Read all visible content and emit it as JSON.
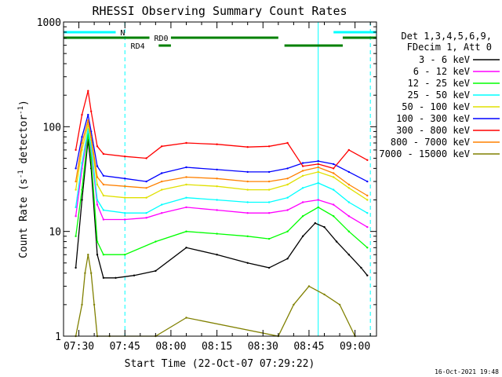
{
  "chart_data": {
    "type": "line",
    "title": "RHESSI Observing Summary Count Rates",
    "xlabel": "Start Time (22-Oct-07 07:29:22)",
    "ylabel_main": "Count Rate (s",
    "ylabel_sup": "-1",
    "ylabel_tail": " detector",
    "ylabel_end": ")",
    "y_scale": "log",
    "ylim": [
      1,
      1000
    ],
    "xlim": [
      "07:25",
      "09:07"
    ],
    "x_ticks": [
      "07:30",
      "07:45",
      "08:00",
      "08:15",
      "08:30",
      "08:45",
      "09:00"
    ],
    "y_ticks": [
      "1",
      "10",
      "100",
      "1000"
    ],
    "grid": false,
    "legend_placement": "right",
    "legend_header": [
      "Det 1,3,4,5,6,9,",
      "FDecim 1, Att 0"
    ],
    "footer_stamp": "16-Oct-2021 19:48",
    "series": [
      {
        "name": "3 - 6 keV",
        "color": "#000000",
        "x": [
          "07:29",
          "07:31",
          "07:33",
          "07:34",
          "07:36",
          "07:38",
          "07:42",
          "07:48",
          "07:55",
          "08:05",
          "08:15",
          "08:25",
          "08:32",
          "08:38",
          "08:43",
          "08:47",
          "08:50",
          "08:54",
          "08:58",
          "09:02",
          "09:04"
        ],
        "y": [
          4.5,
          20,
          75,
          40,
          6,
          3.6,
          3.6,
          3.8,
          4.2,
          7,
          6,
          5,
          4.5,
          5.5,
          9,
          12,
          11,
          8,
          6,
          4.5,
          3.8
        ]
      },
      {
        "name": "6 - 12 keV",
        "color": "#ff00ff",
        "x": [
          "07:29",
          "07:31",
          "07:33",
          "07:34",
          "07:36",
          "07:38",
          "07:45",
          "07:52",
          "07:57",
          "08:05",
          "08:15",
          "08:25",
          "08:32",
          "08:38",
          "08:43",
          "08:48",
          "08:53",
          "08:58",
          "09:04"
        ],
        "y": [
          14,
          40,
          90,
          60,
          18,
          13,
          13,
          13.5,
          15,
          17,
          16,
          15,
          15,
          16,
          19,
          20,
          18,
          14,
          11
        ]
      },
      {
        "name": "12 - 25 keV",
        "color": "#00ff00",
        "x": [
          "07:29",
          "07:31",
          "07:33",
          "07:34",
          "07:36",
          "07:38",
          "07:45",
          "07:55",
          "08:05",
          "08:15",
          "08:25",
          "08:32",
          "08:38",
          "08:43",
          "08:48",
          "08:53",
          "08:58",
          "09:04"
        ],
        "y": [
          9,
          25,
          85,
          50,
          8,
          6,
          6,
          8,
          10,
          9.5,
          9,
          8.5,
          10,
          14,
          17,
          14,
          10,
          7
        ]
      },
      {
        "name": "25 - 50 keV",
        "color": "#00ffff",
        "x": [
          "07:29",
          "07:31",
          "07:33",
          "07:34",
          "07:36",
          "07:38",
          "07:45",
          "07:52",
          "07:57",
          "08:05",
          "08:15",
          "08:25",
          "08:32",
          "08:38",
          "08:43",
          "08:48",
          "08:53",
          "08:58",
          "09:04"
        ],
        "y": [
          17,
          45,
          95,
          65,
          20,
          16,
          15,
          15,
          18,
          21,
          20,
          19,
          19,
          21,
          26,
          29,
          25,
          19,
          15
        ]
      },
      {
        "name": "50 - 100 keV",
        "color": "#e0e000",
        "x": [
          "07:29",
          "07:31",
          "07:33",
          "07:34",
          "07:36",
          "07:38",
          "07:45",
          "07:52",
          "07:57",
          "08:05",
          "08:15",
          "08:25",
          "08:32",
          "08:38",
          "08:43",
          "08:48",
          "08:53",
          "08:58",
          "09:04"
        ],
        "y": [
          25,
          60,
          105,
          75,
          28,
          22,
          21,
          21,
          25,
          28,
          27,
          25,
          25,
          28,
          34,
          37,
          33,
          26,
          20
        ]
      },
      {
        "name": "100 - 300 keV",
        "color": "#0000ff",
        "x": [
          "07:29",
          "07:31",
          "07:33",
          "07:34",
          "07:36",
          "07:38",
          "07:45",
          "07:52",
          "07:57",
          "08:05",
          "08:15",
          "08:25",
          "08:32",
          "08:38",
          "08:43",
          "08:48",
          "08:53",
          "08:58",
          "09:04"
        ],
        "y": [
          40,
          80,
          130,
          90,
          42,
          34,
          32,
          30,
          36,
          41,
          39,
          37,
          37,
          40,
          45,
          47,
          44,
          37,
          30
        ]
      },
      {
        "name": "300 - 800 keV",
        "color": "#ff0000",
        "x": [
          "07:29",
          "07:31",
          "07:33",
          "07:34",
          "07:36",
          "07:38",
          "07:45",
          "07:52",
          "07:57",
          "08:05",
          "08:15",
          "08:25",
          "08:32",
          "08:38",
          "08:43",
          "08:48",
          "08:53",
          "08:58",
          "09:04"
        ],
        "y": [
          60,
          130,
          220,
          140,
          65,
          55,
          52,
          50,
          65,
          70,
          68,
          64,
          65,
          70,
          42,
          44,
          40,
          60,
          48
        ]
      },
      {
        "name": "800 - 7000 keV",
        "color": "#ff8000",
        "x": [
          "07:29",
          "07:31",
          "07:33",
          "07:34",
          "07:36",
          "07:38",
          "07:45",
          "07:52",
          "07:57",
          "08:05",
          "08:15",
          "08:25",
          "08:32",
          "08:38",
          "08:43",
          "08:48",
          "08:53",
          "08:58",
          "09:04"
        ],
        "y": [
          30,
          70,
          115,
          80,
          33,
          28,
          27,
          26,
          30,
          33,
          32,
          30,
          30,
          32,
          38,
          41,
          36,
          28,
          22
        ]
      },
      {
        "name": "7000 - 15000 keV",
        "color": "#808000",
        "x": [
          "07:29",
          "07:31",
          "07:32",
          "07:33",
          "07:34",
          "07:35",
          "07:36",
          "07:40",
          "07:55",
          "08:05",
          "08:35",
          "08:40",
          "08:45",
          "08:50",
          "08:55",
          "09:00"
        ],
        "y": [
          1,
          2,
          4,
          6,
          4,
          2,
          1,
          1,
          1,
          1.5,
          1,
          2,
          3,
          2.5,
          2,
          1
        ]
      }
    ],
    "state_bars": [
      {
        "label": "N",
        "color": "#00ffff",
        "segments": [
          [
            "07:25",
            "07:42"
          ],
          [
            "08:53",
            "09:07"
          ]
        ]
      },
      {
        "label": "RD0",
        "color": "#008000",
        "segments": [
          [
            "07:25",
            "07:53"
          ],
          [
            "08:00",
            "08:35"
          ],
          [
            "08:56",
            "09:07"
          ]
        ]
      },
      {
        "label": "RD4",
        "color": "#008000",
        "segments": [
          [
            "07:56",
            "08:00"
          ],
          [
            "08:37",
            "08:56"
          ]
        ]
      }
    ],
    "vertical_markers": [
      {
        "x": "07:25",
        "style": "dashed",
        "color": "#00ffff"
      },
      {
        "x": "07:45",
        "style": "dashed",
        "color": "#00ffff"
      },
      {
        "x": "08:48",
        "style": "solid",
        "color": "#00ffff"
      },
      {
        "x": "09:05",
        "style": "dashed",
        "color": "#00ffff"
      }
    ]
  }
}
